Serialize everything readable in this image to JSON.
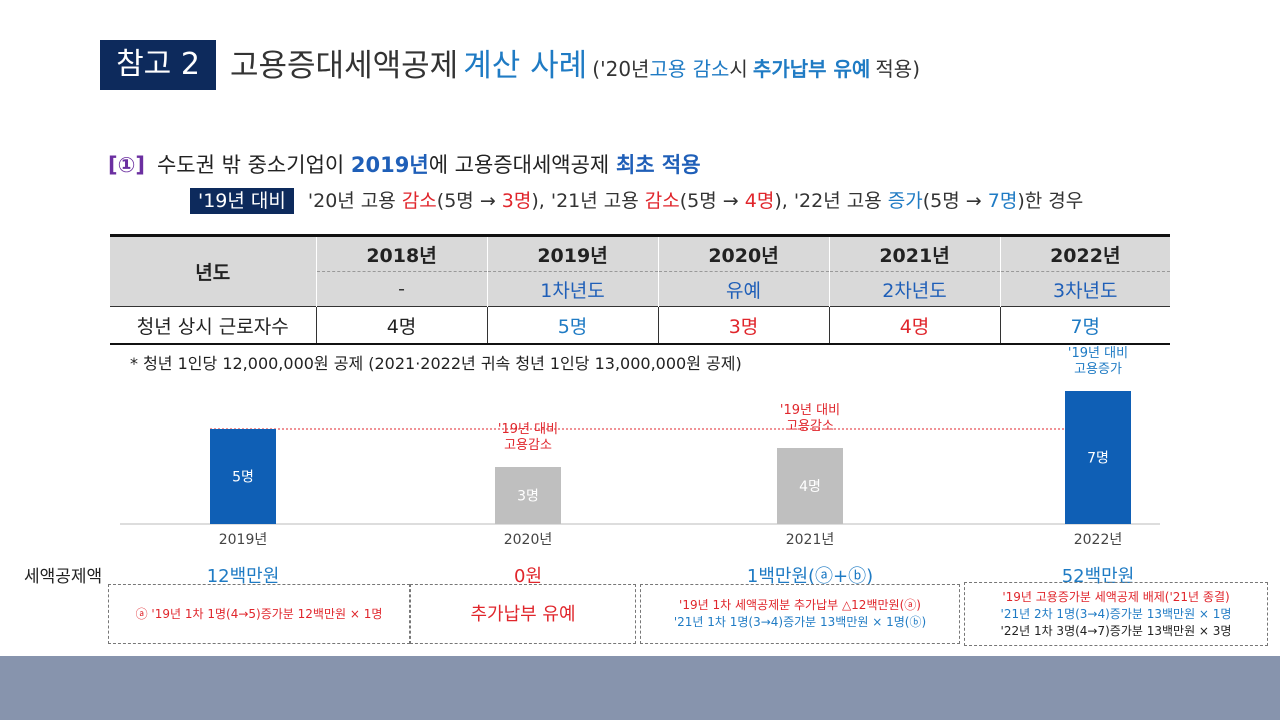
{
  "header": {
    "badge": "참고 2",
    "title_main": "고용증대세액공제",
    "title_blue": "계산 사례",
    "title_paren_open": "('20년",
    "title_paren_blue": "고용 감소",
    "title_paren_mid": "시",
    "title_paren_bold": "추가납부 유예",
    "title_paren_close": "적용)"
  },
  "case": {
    "number": "[①]",
    "text_a": "수도권 밖 중소기업이",
    "text_year": "2019년",
    "text_b": "에 고용증대세액공제",
    "text_c": "최초 적용",
    "cond_badge": "'19년 대비",
    "cond_1": "'20년 고용",
    "cond_1_word": "감소",
    "cond_1_paren": "(5명 →",
    "cond_1_val": "3명",
    "cond_2": "), '21년 고용",
    "cond_2_word": "감소",
    "cond_2_paren": "(5명 →",
    "cond_2_val": "4명",
    "cond_3": "), '22년 고용",
    "cond_3_word": "증가",
    "cond_3_paren": "(5명 →",
    "cond_3_val": "7명",
    "cond_end": ")한 경우"
  },
  "table": {
    "row_header": "년도",
    "years": [
      "2018년",
      "2019년",
      "2020년",
      "2021년",
      "2022년"
    ],
    "phases": [
      "-",
      "1차년도",
      "유예",
      "2차년도",
      "3차년도"
    ],
    "count_label": "청년 상시 근로자수",
    "counts": [
      "4명",
      "5명",
      "3명",
      "4명",
      "7명"
    ],
    "count_colors": [
      "#222222",
      "#1f7bc4",
      "#e0262c",
      "#e0262c",
      "#1f7bc4"
    ]
  },
  "note": "* 청년 1인당 12,000,000원 공제 (2021·2022년 귀속 청년 1인당 13,000,000원 공제)",
  "chart_data": {
    "type": "bar",
    "categories": [
      "2019년",
      "2020년",
      "2021년",
      "2022년"
    ],
    "values": [
      5,
      3,
      4,
      7
    ],
    "value_labels": [
      "5명",
      "3명",
      "4명",
      "7명"
    ],
    "bar_colors": [
      "#0f5fb5",
      "#bfbfbf",
      "#bfbfbf",
      "#0f5fb5"
    ],
    "reference_line": 5,
    "annotations": [
      {
        "category": "2020년",
        "lines": [
          "'19년 대비",
          "고용감소"
        ],
        "color": "red"
      },
      {
        "category": "2021년",
        "lines": [
          "'19년 대비",
          "고용감소"
        ],
        "color": "red"
      },
      {
        "category": "2022년",
        "lines": [
          "'19년 대비",
          "고용증가"
        ],
        "color": "blue"
      }
    ],
    "title": "",
    "xlabel": "",
    "ylabel": "",
    "grid": false
  },
  "credit": {
    "title": "세액공제액",
    "amounts": [
      "12백만원",
      "0원",
      "1백만원(ⓐ+ⓑ)",
      "52백만원"
    ],
    "amount_colors": [
      "#1f7bc4",
      "#e0262c",
      "#1f7bc4",
      "#1f7bc4"
    ]
  },
  "details": {
    "box1": "ⓐ '19년 1차 1명(4→5)증가분 12백만원 × 1명",
    "box2": "추가납부 유예",
    "box3_line1": "'19년 1차 세액공제분 추가납부 △12백만원(ⓐ)",
    "box3_line2": "'21년 1차 1명(3→4)증가분 13백만원 × 1명(ⓑ)",
    "box4_line1": "'19년 고용증가분 세액공제 배제('21년 종결)",
    "box4_line2": "'21년 2차 1명(3→4)증가분 13백만원 × 1명",
    "box4_line3": "'22년 1차 3명(4→7)증가분 13백만원 × 3명"
  }
}
